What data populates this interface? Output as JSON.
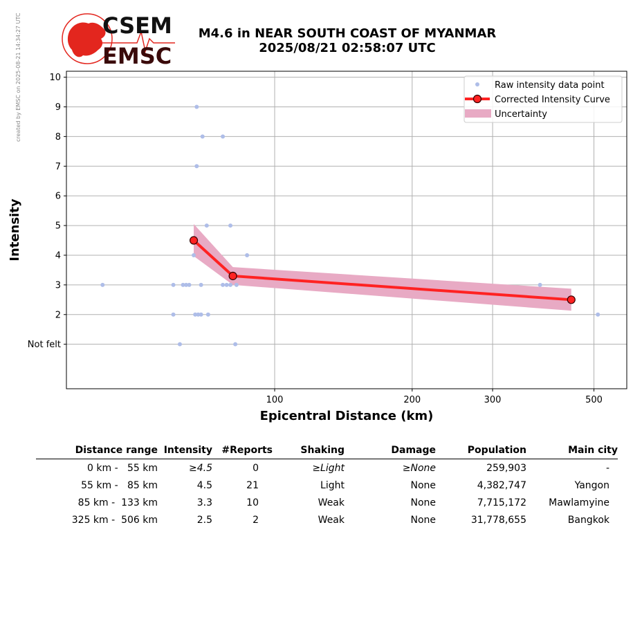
{
  "side_note": "created by EMSC on 2025-08-21 14:34:27 UTC",
  "logo": {
    "line1": "CSEM",
    "line2": "EMSC",
    "color": "#e3261e"
  },
  "title": {
    "line1": "M4.6 in NEAR SOUTH COAST OF MYANMAR",
    "line2": "2025/08/21 02:58:07 UTC"
  },
  "chart_data": {
    "type": "scatter",
    "xlabel": "Epicentral Distance (km)",
    "ylabel": "Intensity",
    "x_scale": "log",
    "xlim": [
      35,
      590
    ],
    "ylim": [
      -0.5,
      10.2
    ],
    "x_ticks": [
      100,
      200,
      300,
      500
    ],
    "y_ticks": [
      {
        "value": 1,
        "label": "Not felt"
      },
      {
        "value": 2,
        "label": "2"
      },
      {
        "value": 3,
        "label": "3"
      },
      {
        "value": 4,
        "label": "4"
      },
      {
        "value": 5,
        "label": "5"
      },
      {
        "value": 6,
        "label": "6"
      },
      {
        "value": 7,
        "label": "7"
      },
      {
        "value": 8,
        "label": "8"
      },
      {
        "value": 9,
        "label": "9"
      },
      {
        "value": 10,
        "label": "10"
      }
    ],
    "grid": true,
    "legend_position": "top-right",
    "legend": [
      "Raw intensity data point",
      "Corrected Intensity Curve",
      "Uncertainty"
    ],
    "colors": {
      "raw": "#aebde8",
      "curve": "#ff2222",
      "marker_edge": "#330000",
      "uncertainty": "#e8aac4"
    },
    "raw_points": [
      {
        "x": 67.5,
        "y": 9
      },
      {
        "x": 69.5,
        "y": 8
      },
      {
        "x": 77,
        "y": 8
      },
      {
        "x": 67.5,
        "y": 7
      },
      {
        "x": 71,
        "y": 5
      },
      {
        "x": 80,
        "y": 5
      },
      {
        "x": 87,
        "y": 4
      },
      {
        "x": 66.5,
        "y": 4
      },
      {
        "x": 42,
        "y": 3
      },
      {
        "x": 60,
        "y": 3
      },
      {
        "x": 63,
        "y": 3
      },
      {
        "x": 64,
        "y": 3
      },
      {
        "x": 65,
        "y": 3
      },
      {
        "x": 69,
        "y": 3
      },
      {
        "x": 77,
        "y": 3
      },
      {
        "x": 78.5,
        "y": 3
      },
      {
        "x": 80,
        "y": 3
      },
      {
        "x": 82.5,
        "y": 3
      },
      {
        "x": 381,
        "y": 3
      },
      {
        "x": 60,
        "y": 2
      },
      {
        "x": 67,
        "y": 2
      },
      {
        "x": 68,
        "y": 2
      },
      {
        "x": 69,
        "y": 2
      },
      {
        "x": 71.5,
        "y": 2
      },
      {
        "x": 510,
        "y": 2
      },
      {
        "x": 62,
        "y": 1
      },
      {
        "x": 82,
        "y": 1
      }
    ],
    "curve": [
      {
        "x": 66.5,
        "y": 4.5
      },
      {
        "x": 81,
        "y": 3.3
      },
      {
        "x": 446,
        "y": 2.5
      }
    ],
    "uncertainty_upper": [
      5.05,
      3.6,
      2.87
    ],
    "uncertainty_lower": [
      3.97,
      3.0,
      2.13
    ]
  },
  "table": {
    "headers": [
      "Distance range",
      "Intensity",
      "#Reports",
      "Shaking",
      "Damage",
      "Population",
      "Main city"
    ],
    "rows": [
      [
        "0 km -   55 km",
        "≥4.5",
        "0",
        "≥Light",
        "≥None",
        "259,903",
        "-"
      ],
      [
        "55 km -   85 km",
        "4.5",
        "21",
        "Light",
        "None",
        "4,382,747",
        "Yangon"
      ],
      [
        "85 km -  133 km",
        "3.3",
        "10",
        "Weak",
        "None",
        "7,715,172",
        "Mawlamyine"
      ],
      [
        "325 km -  506 km",
        "2.5",
        "2",
        "Weak",
        "None",
        "31,778,655",
        "Bangkok"
      ]
    ]
  }
}
